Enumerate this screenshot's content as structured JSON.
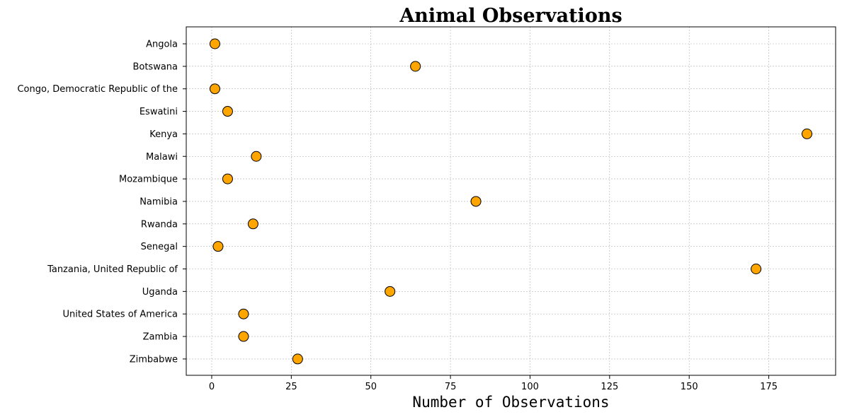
{
  "chart_data": {
    "type": "scatter",
    "title": "Animal Observations",
    "xlabel": "Number of Observations",
    "ylabel": "",
    "xlim": [
      -8,
      196
    ],
    "xticks": [
      0,
      25,
      50,
      75,
      100,
      125,
      150,
      175
    ],
    "grid": true,
    "marker_color": "#FFA500",
    "marker_edge_color": "#000000",
    "categories": [
      "Angola",
      "Botswana",
      "Congo, Democratic Republic of the",
      "Eswatini",
      "Kenya",
      "Malawi",
      "Mozambique",
      "Namibia",
      "Rwanda",
      "Senegal",
      "Tanzania, United Republic of",
      "Uganda",
      "United States of America",
      "Zambia",
      "Zimbabwe"
    ],
    "values": [
      1,
      64,
      1,
      5,
      187,
      14,
      5,
      83,
      13,
      2,
      171,
      56,
      10,
      10,
      27
    ]
  }
}
